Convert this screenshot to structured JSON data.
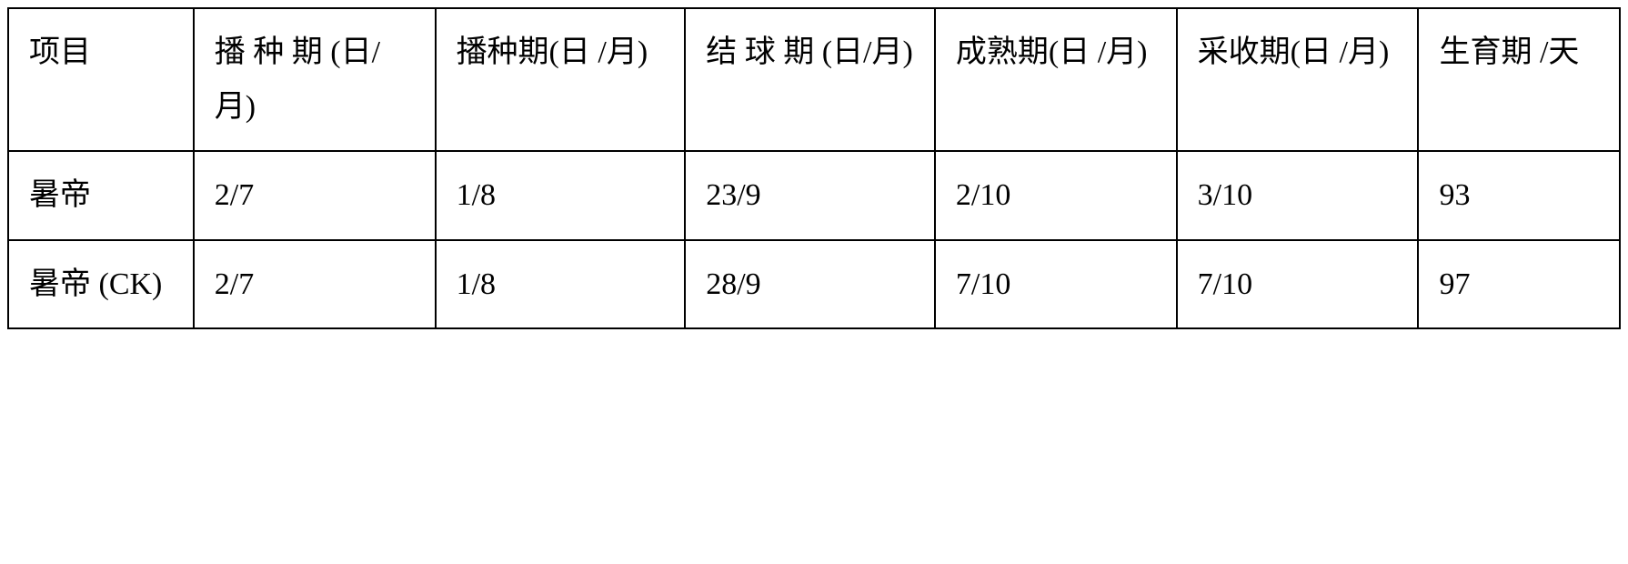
{
  "table": {
    "columns": [
      "项目",
      "播 种 期 (日/月)",
      "播种期(日 /月)",
      " 结 球 期 (日/月)",
      "成熟期(日 /月)",
      "采收期(日 /月)",
      "生育期 /天"
    ],
    "rows": [
      [
        "暑帝",
        "2/7",
        "1/8",
        "23/9",
        "2/10",
        "3/10",
        "93"
      ],
      [
        "暑帝 (CK)",
        "2/7",
        "1/8",
        "28/9",
        "7/10",
        "7/10",
        "97"
      ]
    ],
    "border_color": "#000000",
    "background_color": "#ffffff",
    "text_color": "#000000",
    "font_family": "KaiTi",
    "font_size": 34,
    "col_widths": [
      "11.5%",
      "15%",
      "15.5%",
      "15.5%",
      "15%",
      "15%",
      "12.5%"
    ]
  }
}
